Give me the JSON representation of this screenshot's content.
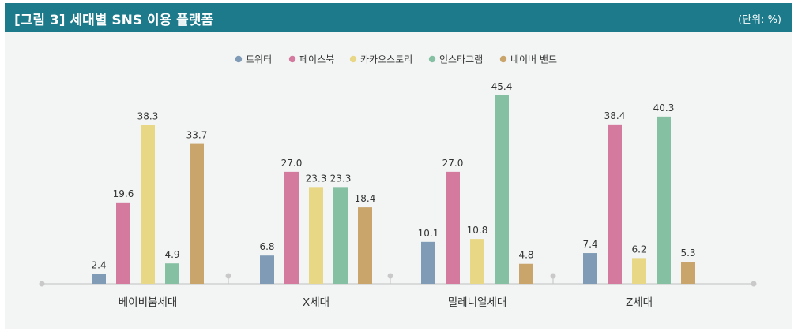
{
  "header": {
    "title": "[그림 3]  세대별 SNS 이용 플랫폼",
    "unit": "(단위: %)"
  },
  "colors": {
    "header_bg": "#1c7a8b",
    "panel_bg": "#f3f5f5",
    "axis": "#c9c9c9",
    "label": "#333333"
  },
  "chart_data": {
    "type": "bar",
    "title": "세대별 SNS 이용 플랫폼",
    "xlabel": "",
    "ylabel": "",
    "unit": "%",
    "ylim": [
      0,
      50
    ],
    "legend_position": "top-center",
    "categories": [
      "베이비붐세대",
      "X세대",
      "밀레니얼세대",
      "Z세대"
    ],
    "value_labels": [
      [
        "2.4",
        "19.6",
        "38.3",
        "4.9",
        "33.7"
      ],
      [
        "6.8",
        "27.0",
        "23.3",
        "23.3",
        "18.4"
      ],
      [
        "10.1",
        "27.0",
        "10.8",
        "45.4",
        "4.8"
      ],
      [
        "7.4",
        "38.4",
        "6.2",
        "40.3",
        "5.3"
      ]
    ],
    "series": [
      {
        "name": "트위터",
        "color": "#7f9bb5",
        "values": [
          2.4,
          6.8,
          10.1,
          7.4
        ]
      },
      {
        "name": "페이스북",
        "color": "#d47a9e",
        "values": [
          19.6,
          27.0,
          27.0,
          38.4
        ]
      },
      {
        "name": "카카오스토리",
        "color": "#e8d784",
        "values": [
          38.3,
          23.3,
          10.8,
          6.2
        ]
      },
      {
        "name": "인스타그램",
        "color": "#86c0a2",
        "values": [
          4.9,
          23.3,
          45.4,
          40.3
        ]
      },
      {
        "name": "네이버 밴드",
        "color": "#c9a46b",
        "values": [
          33.7,
          18.4,
          4.8,
          5.3
        ]
      }
    ]
  }
}
